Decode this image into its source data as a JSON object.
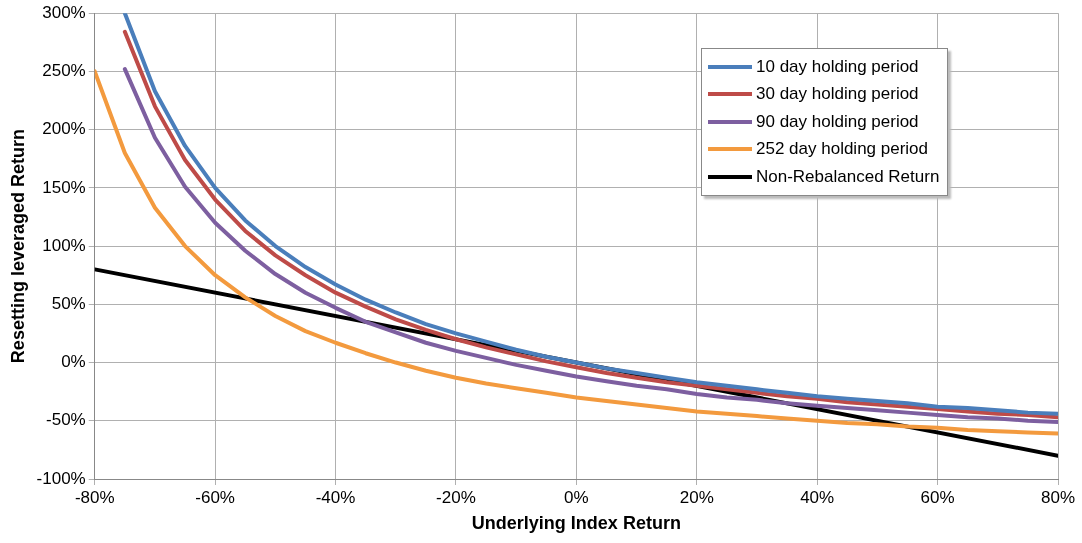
{
  "chart_data": {
    "type": "line",
    "xlabel": "Underlying Index Return",
    "ylabel": "Resetting leveraged Return",
    "x": [
      -80,
      -75,
      -70,
      -65,
      -60,
      -55,
      -50,
      -45,
      -40,
      -35,
      -30,
      -25,
      -20,
      -15,
      -10,
      -5,
      0,
      5,
      10,
      15,
      20,
      25,
      30,
      35,
      40,
      45,
      50,
      55,
      60,
      65,
      70,
      75,
      80
    ],
    "series": [
      {
        "name": "10 day holding period",
        "color": "#4a7ebb",
        "values": [
          null,
          300,
          233,
          186,
          150,
          122,
          100,
          82,
          67,
          54,
          43,
          33,
          25,
          18,
          11,
          5,
          0,
          -5,
          -9,
          -13,
          -17,
          -20,
          -23,
          -26,
          -29,
          -31,
          -33,
          -35,
          -38,
          -39,
          -41,
          -43,
          -44
        ]
      },
      {
        "name": "30 day holding period",
        "color": "#be4b48",
        "values": [
          null,
          284,
          220,
          174,
          140,
          113,
          92,
          75,
          60,
          48,
          37,
          28,
          20,
          13,
          7,
          1,
          -4,
          -9,
          -13,
          -17,
          -20,
          -23,
          -26,
          -29,
          -31,
          -34,
          -36,
          -38,
          -40,
          -42,
          -44,
          -45,
          -47
        ]
      },
      {
        "name": "90 day holding period",
        "color": "#7d5fa0",
        "values": [
          null,
          252,
          193,
          151,
          120,
          96,
          76,
          60,
          47,
          35,
          26,
          17,
          10,
          4,
          -2,
          -7,
          -12,
          -16,
          -20,
          -23,
          -27,
          -30,
          -32,
          -35,
          -37,
          -39,
          -41,
          -43,
          -45,
          -47,
          -48,
          -50,
          -51
        ]
      },
      {
        "name": "252 day holding period",
        "color": "#f39a3e",
        "values": [
          250,
          180,
          133,
          100,
          75,
          56,
          40,
          27,
          17,
          8,
          0,
          -7,
          -13,
          -18,
          -22,
          -26,
          -30,
          -33,
          -36,
          -39,
          -42,
          -44,
          -46,
          -48,
          -50,
          -52,
          -53,
          -55,
          -56,
          -58,
          -59,
          -60,
          -61
        ]
      },
      {
        "name": "Non-Rebalanced Return",
        "color": "#000000",
        "x": [
          -80,
          80
        ],
        "values": [
          80,
          -80
        ]
      }
    ],
    "xlim": [
      -80,
      80
    ],
    "xticks": [
      {
        "value": -80,
        "label": "-80%"
      },
      {
        "value": -60,
        "label": "-60%"
      },
      {
        "value": -40,
        "label": "-40%"
      },
      {
        "value": -20,
        "label": "-20%"
      },
      {
        "value": 0,
        "label": "0%"
      },
      {
        "value": 20,
        "label": "20%"
      },
      {
        "value": 40,
        "label": "40%"
      },
      {
        "value": 60,
        "label": "60%"
      },
      {
        "value": 80,
        "label": "80%"
      }
    ],
    "ylim": [
      -100,
      300
    ],
    "yticks": [
      {
        "value": -100,
        "label": "-100%"
      },
      {
        "value": -50,
        "label": "-50%"
      },
      {
        "value": 0,
        "label": "0%"
      },
      {
        "value": 50,
        "label": "50%"
      },
      {
        "value": 100,
        "label": "100%"
      },
      {
        "value": 150,
        "label": "150%"
      },
      {
        "value": 200,
        "label": "200%"
      },
      {
        "value": 250,
        "label": "250%"
      },
      {
        "value": 300,
        "label": "300%"
      }
    ],
    "grid": true,
    "legend": "top right",
    "marker": "none",
    "line_style": "solid"
  }
}
